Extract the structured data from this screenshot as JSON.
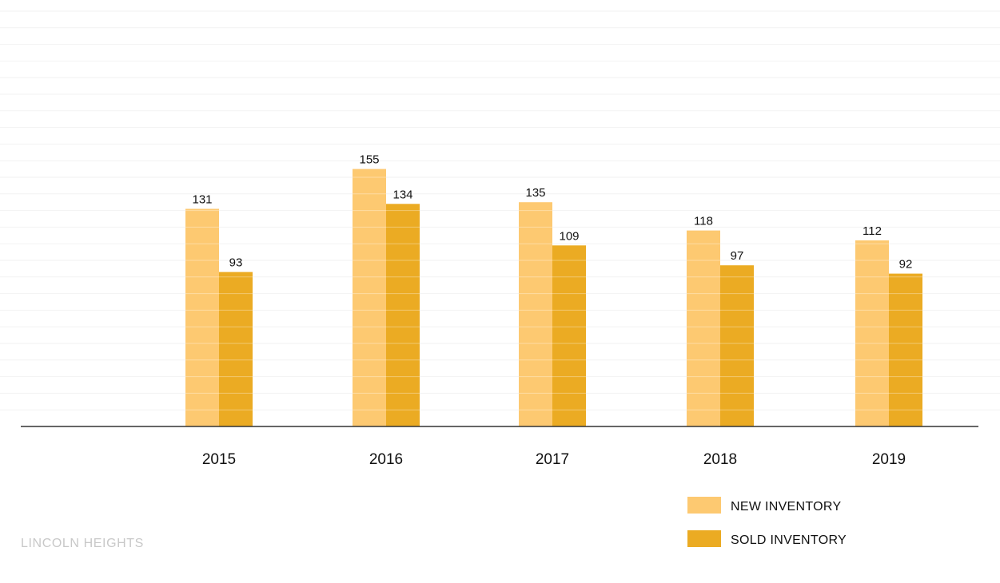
{
  "chart_data": {
    "type": "bar",
    "categories": [
      "2015",
      "2016",
      "2017",
      "2018",
      "2019"
    ],
    "series": [
      {
        "name": "NEW INVENTORY",
        "values": [
          131,
          155,
          135,
          118,
          112
        ],
        "color": "#fdc971"
      },
      {
        "name": "SOLD INVENTORY",
        "values": [
          93,
          134,
          109,
          97,
          92
        ],
        "color": "#ebab23"
      }
    ],
    "title": "",
    "xlabel": "",
    "ylabel": "",
    "ylim": [
      0,
      250
    ],
    "grid": true,
    "legend": "bottom-right",
    "footer": "LINCOLN HEIGHTS"
  }
}
